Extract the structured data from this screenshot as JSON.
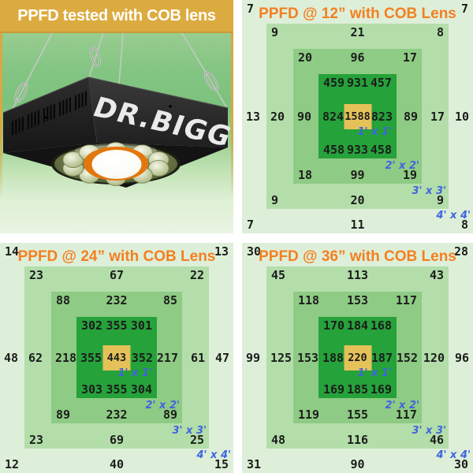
{
  "banner": {
    "text": "PPFD tested with COB lens"
  },
  "photo": {
    "brand": "DR.BIGG"
  },
  "zone_labels": [
    "1' x 1'",
    "2' x 2'",
    "3' x 3'",
    "4' x 4'"
  ],
  "colors": {
    "banner_bg": "#dcab3f",
    "title_orange": "#f57f21",
    "zone_label_blue": "#4064e0",
    "ring_greens": [
      "#ddefd8",
      "#b3deaa",
      "#8ecb84",
      "#25a23a"
    ],
    "center_yellow": "#e5c259",
    "value_text": "#1c1c1c"
  },
  "chart_data": [
    {
      "type": "heatmap",
      "title": "PPFD @ 12” with COB Lens",
      "center": 1588,
      "rings": [
        {
          "tl": 7,
          "tr": 7,
          "l": 13,
          "r": 10,
          "bl": 7,
          "b": 11,
          "br": 8
        },
        {
          "tl": 9,
          "t": 21,
          "tr": 8,
          "l": 20,
          "r": 17,
          "bl": 9,
          "b": 20,
          "br": 9
        },
        {
          "tl": 20,
          "t": 96,
          "tr": 17,
          "l": 90,
          "r": 89,
          "bl": 18,
          "b": 99,
          "br": 19
        },
        {
          "tl": 459,
          "t": 931,
          "tr": 457,
          "l": 824,
          "r": 823,
          "bl": 458,
          "b": 933,
          "br": 458
        }
      ]
    },
    {
      "type": "heatmap",
      "title": "PPFD @ 24” with COB Lens",
      "center": 443,
      "rings": [
        {
          "tl": 14,
          "tr": 13,
          "l": 48,
          "r": 47,
          "bl": 12,
          "b": 40,
          "br": 15
        },
        {
          "tl": 23,
          "t": 67,
          "tr": 22,
          "l": 62,
          "r": 61,
          "bl": 23,
          "b": 69,
          "br": 25
        },
        {
          "tl": 88,
          "t": 232,
          "tr": 85,
          "l": 218,
          "r": 217,
          "bl": 89,
          "b": 232,
          "br": 89
        },
        {
          "tl": 302,
          "t": 355,
          "tr": 301,
          "l": 355,
          "r": 352,
          "bl": 303,
          "b": 355,
          "br": 304
        }
      ]
    },
    {
      "type": "heatmap",
      "title": "PPFD @ 36” with COB Lens",
      "center": 220,
      "rings": [
        {
          "tl": 30,
          "tr": 28,
          "l": 99,
          "r": 96,
          "bl": 31,
          "b": 90,
          "br": 30
        },
        {
          "tl": 45,
          "t": 113,
          "tr": 43,
          "l": 125,
          "r": 120,
          "bl": 48,
          "b": 116,
          "br": 46
        },
        {
          "tl": 118,
          "t": 153,
          "tr": 117,
          "l": 153,
          "r": 152,
          "bl": 119,
          "b": 155,
          "br": 117
        },
        {
          "tl": 170,
          "t": 184,
          "tr": 168,
          "l": 188,
          "r": 187,
          "bl": 169,
          "b": 185,
          "br": 169
        }
      ]
    }
  ]
}
